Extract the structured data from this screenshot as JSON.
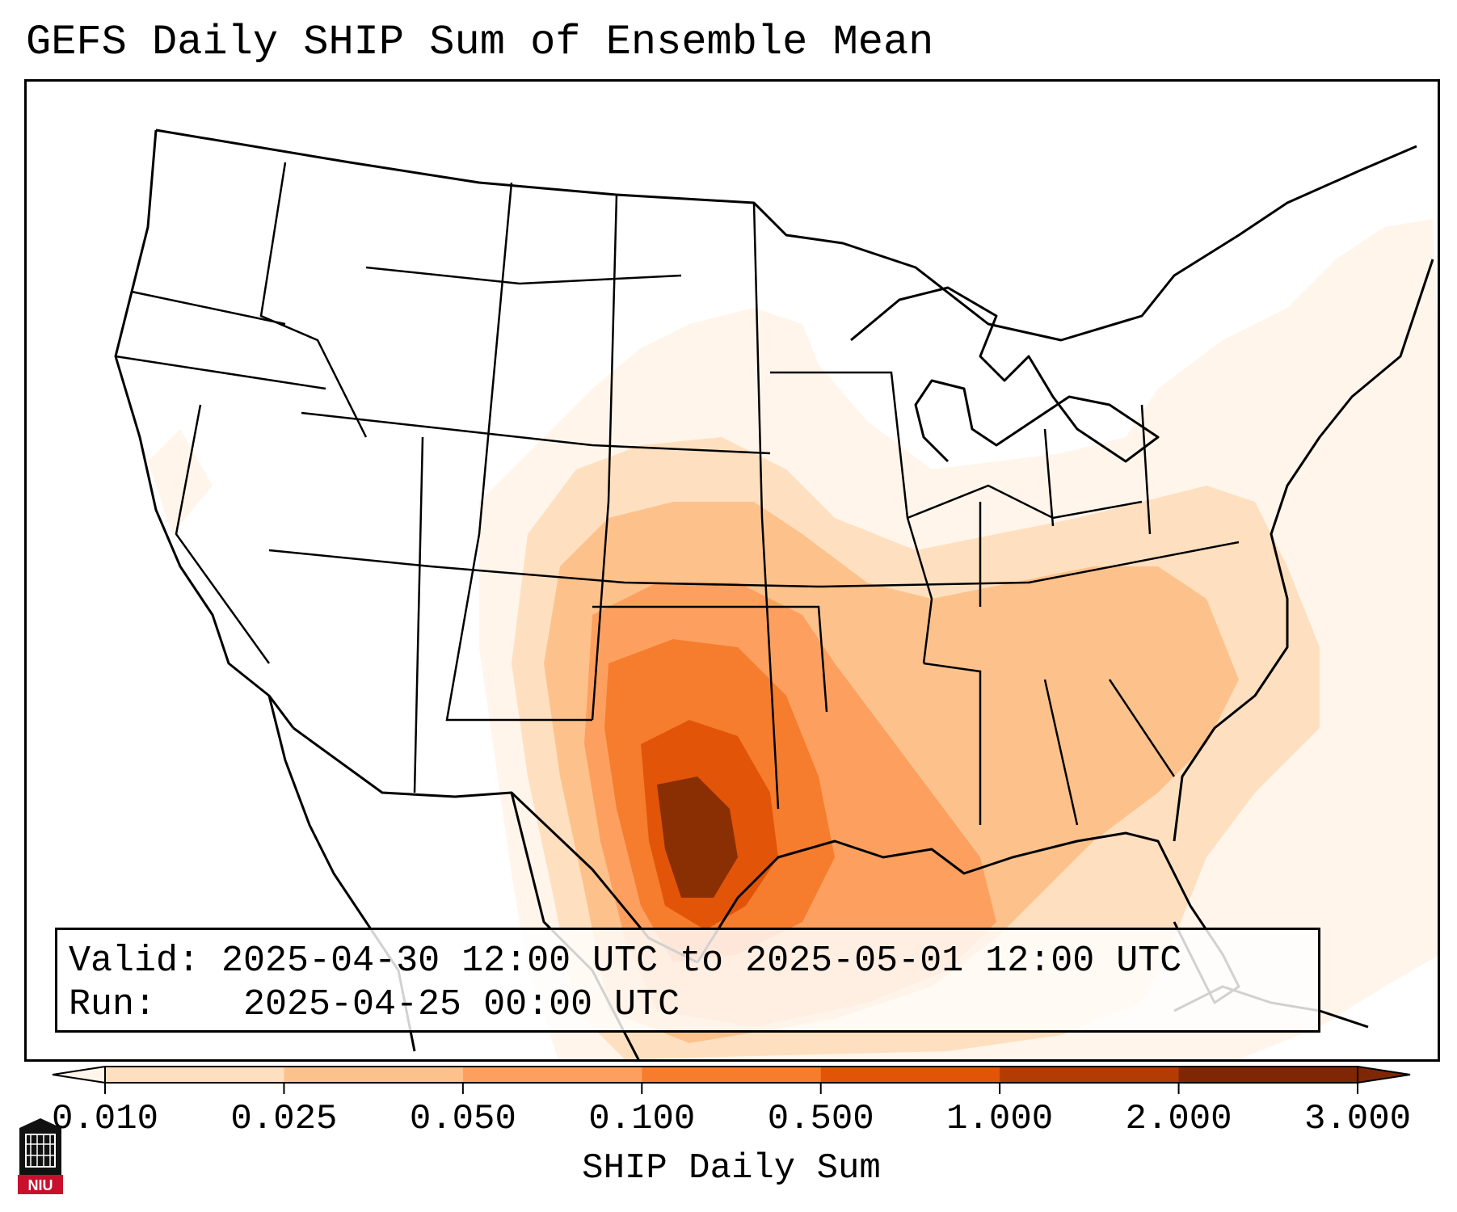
{
  "title": "GEFS Daily SHIP Sum of Ensemble Mean",
  "info": {
    "valid_label": "Valid:",
    "valid_value": "2025-04-30 12:00 UTC to 2025-05-01 12:00 UTC",
    "run_label": "Run:",
    "run_value": "2025-04-25 00:00 UTC"
  },
  "colorbar": {
    "label": "SHIP Daily Sum",
    "ticks": [
      "0.010",
      "0.025",
      "0.050",
      "0.100",
      "0.500",
      "1.000",
      "2.000",
      "3.000"
    ],
    "colors": [
      "#fff5eb",
      "#fee0c0",
      "#fdc28c",
      "#fda05f",
      "#f67d2e",
      "#e25508",
      "#b23c03",
      "#7f2704"
    ],
    "extend": "both"
  },
  "logo": {
    "text": "NIU"
  }
}
